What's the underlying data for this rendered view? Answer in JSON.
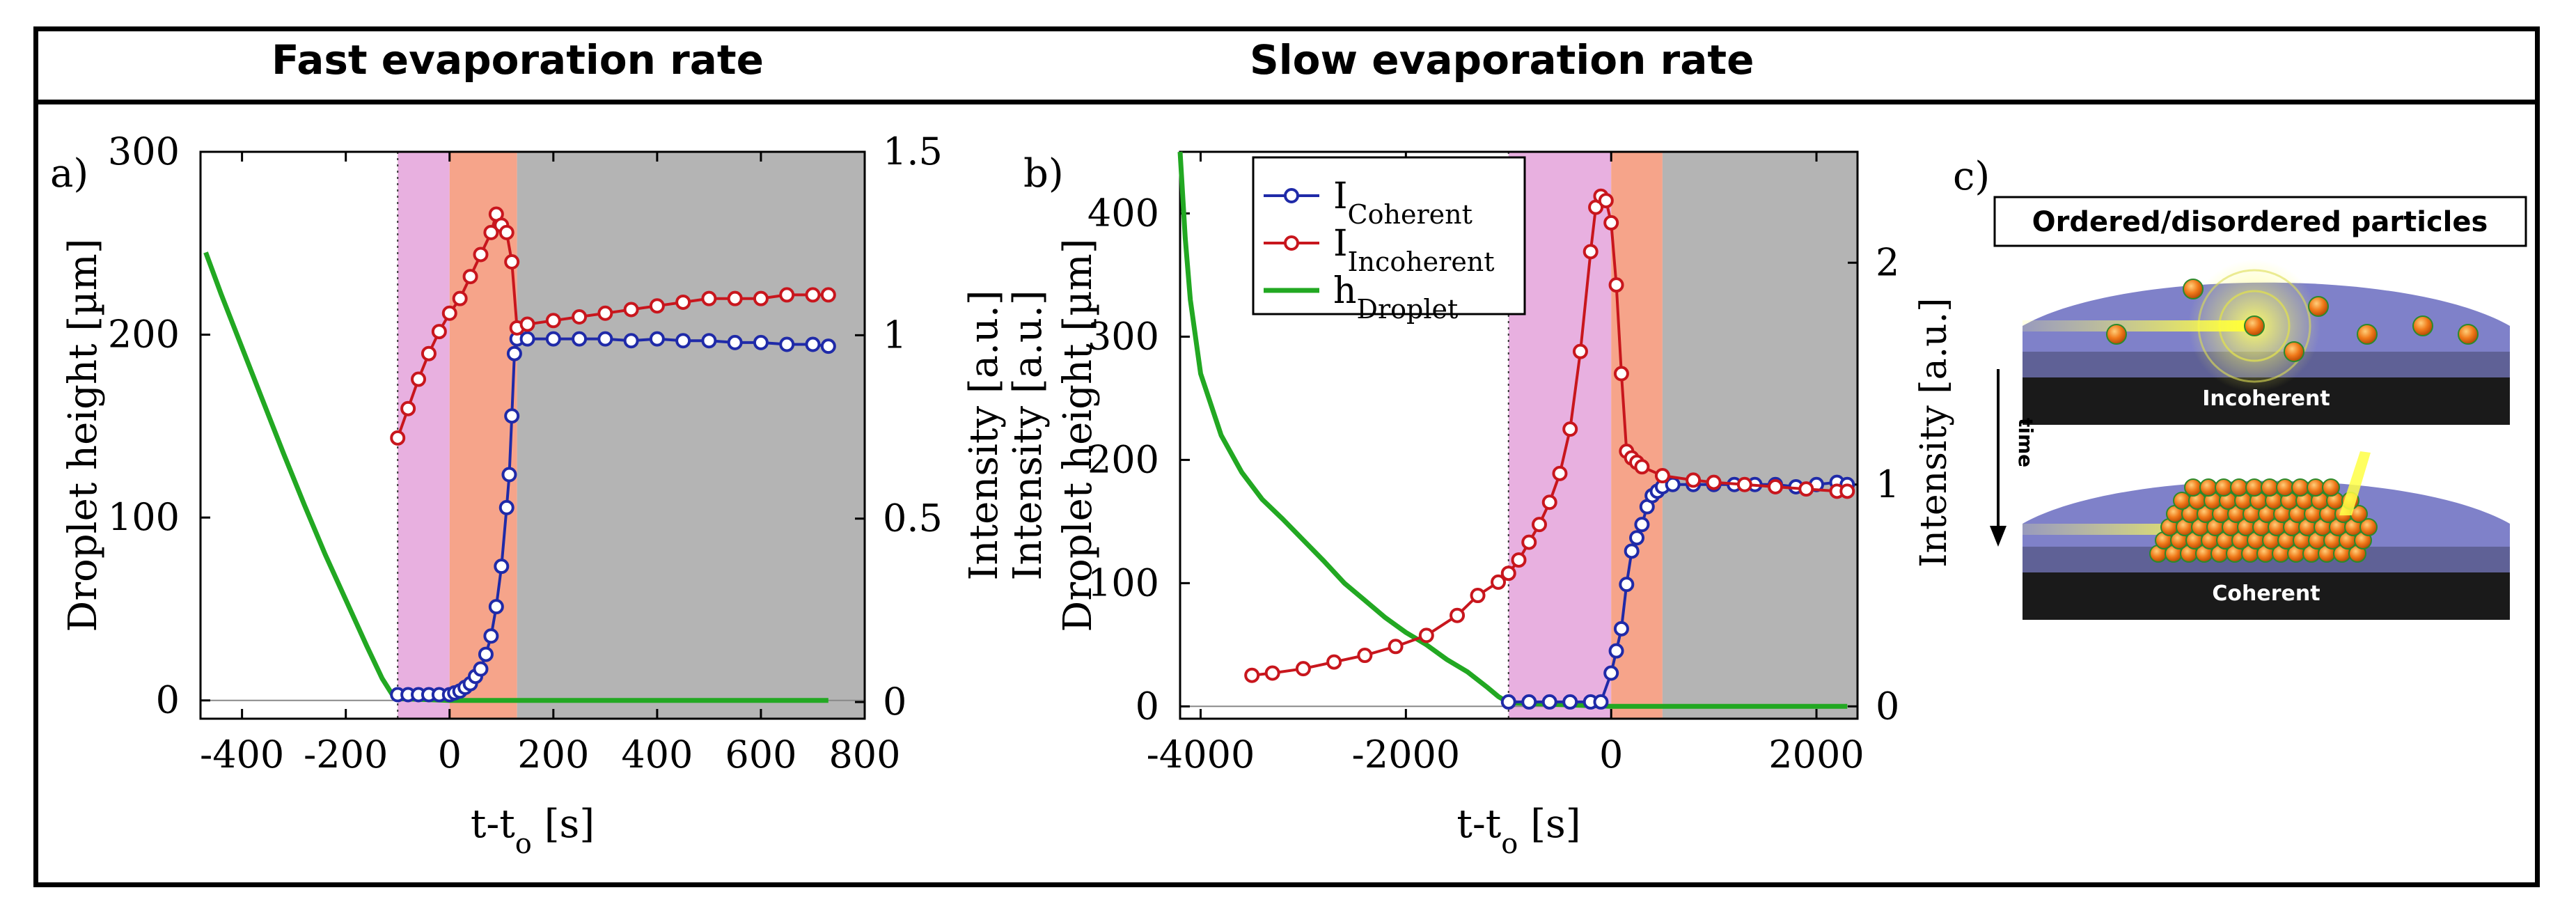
{
  "headers": {
    "left": "Fast evaporation rate",
    "right": "Slow evaporation rate"
  },
  "panel_a": {
    "label": "a)"
  },
  "panel_b": {
    "label": "b)"
  },
  "panel_c": {
    "label": "c)",
    "title": "Ordered/disordered particles",
    "top_caption": "Incoherent",
    "bottom_caption": "Coherent",
    "time_label": "time",
    "intensity_label": "Intensity [a.u.]"
  },
  "colors": {
    "coherent": "#1f2aa8",
    "incoherent": "#c8161d",
    "droplet": "#22a822",
    "phase1": "#e8b0e0",
    "phase2": "#f6a48a",
    "phase3": "#b4b4b4"
  },
  "chart_data": [
    {
      "type": "line",
      "panel": "a",
      "xlabel": "t-t0 [s]",
      "xlabel_parts": [
        "t-t",
        "o",
        " [s]"
      ],
      "ylabel": "Droplet height [µm]",
      "y2label": "Intensity [a.u.]",
      "xlim": [
        -480,
        800
      ],
      "ylim": [
        -10,
        300
      ],
      "y2lim": [
        -0.04545,
        1.5
      ],
      "xticks": [
        -400,
        -200,
        0,
        200,
        400,
        600,
        800
      ],
      "yticks": [
        0,
        100,
        200,
        300
      ],
      "y2ticks": [
        0,
        0.5,
        1,
        1.5
      ],
      "shaded_regions": [
        {
          "from": -100,
          "to": 0,
          "color": "#e8b0e0"
        },
        {
          "from": 0,
          "to": 130,
          "color": "#f6a48a"
        },
        {
          "from": 130,
          "to": 800,
          "color": "#b4b4b4"
        }
      ],
      "series": [
        {
          "name": "h_Droplet",
          "axis": "left",
          "color": "#22a822",
          "x": [
            -470,
            -440,
            -400,
            -360,
            -320,
            -280,
            -240,
            -200,
            -160,
            -130,
            -110,
            -100,
            0,
            200,
            400,
            600,
            730
          ],
          "y": [
            245,
            222,
            193,
            164,
            135,
            107,
            80,
            55,
            30,
            12,
            3,
            1,
            0,
            0,
            0,
            0,
            0
          ]
        },
        {
          "name": "I_Coherent",
          "axis": "right",
          "color": "#1f2aa8",
          "x": [
            -100,
            -80,
            -60,
            -40,
            -20,
            0,
            10,
            20,
            30,
            40,
            50,
            60,
            70,
            80,
            90,
            100,
            110,
            115,
            120,
            125,
            130,
            150,
            200,
            250,
            300,
            350,
            400,
            450,
            500,
            550,
            600,
            650,
            700,
            730
          ],
          "y": [
            0.02,
            0.02,
            0.02,
            0.02,
            0.02,
            0.02,
            0.025,
            0.03,
            0.04,
            0.05,
            0.07,
            0.09,
            0.13,
            0.18,
            0.26,
            0.37,
            0.53,
            0.62,
            0.78,
            0.95,
            0.99,
            0.99,
            0.99,
            0.99,
            0.99,
            0.985,
            0.99,
            0.985,
            0.985,
            0.98,
            0.98,
            0.975,
            0.975,
            0.97
          ]
        },
        {
          "name": "I_Incoherent",
          "axis": "right",
          "color": "#c8161d",
          "x": [
            -100,
            -80,
            -60,
            -40,
            -20,
            0,
            20,
            40,
            60,
            80,
            90,
            100,
            110,
            120,
            130,
            150,
            200,
            250,
            300,
            350,
            400,
            450,
            500,
            550,
            600,
            650,
            700,
            730
          ],
          "y": [
            0.72,
            0.8,
            0.88,
            0.95,
            1.01,
            1.06,
            1.1,
            1.16,
            1.22,
            1.28,
            1.33,
            1.3,
            1.28,
            1.2,
            1.02,
            1.03,
            1.04,
            1.05,
            1.06,
            1.07,
            1.08,
            1.09,
            1.1,
            1.1,
            1.1,
            1.11,
            1.11,
            1.11
          ]
        }
      ]
    },
    {
      "type": "line",
      "panel": "b",
      "xlabel": "t-t0 [s]",
      "xlabel_parts": [
        "t-t",
        "o",
        " [s]"
      ],
      "ylabel": "Intensity [a.u.] Droplet height [µm]",
      "ylabel_lines": [
        "Intensity [a.u.]",
        "Droplet height [µm]"
      ],
      "y2label": "",
      "xlim": [
        -4200,
        2400
      ],
      "ylim": [
        -10,
        450
      ],
      "y2lim": [
        -0.05556,
        2.5
      ],
      "xticks": [
        -4000,
        -2000,
        0,
        2000
      ],
      "yticks": [
        0,
        100,
        200,
        300,
        400
      ],
      "y2ticks": [
        0,
        1,
        2
      ],
      "shaded_regions": [
        {
          "from": -1000,
          "to": 0,
          "color": "#e8b0e0"
        },
        {
          "from": 0,
          "to": 500,
          "color": "#f6a48a"
        },
        {
          "from": 500,
          "to": 2400,
          "color": "#b4b4b4"
        }
      ],
      "legend": [
        {
          "main": "I",
          "sub": "Coherent",
          "color": "#1f2aa8",
          "marker": true
        },
        {
          "main": "I",
          "sub": "Incoherent",
          "color": "#c8161d",
          "marker": true
        },
        {
          "main": "h",
          "sub": "Droplet",
          "color": "#22a822",
          "marker": false
        }
      ],
      "series": [
        {
          "name": "h_Droplet",
          "axis": "left",
          "color": "#22a822",
          "x": [
            -4200,
            -4150,
            -4100,
            -4000,
            -3800,
            -3600,
            -3400,
            -3200,
            -3000,
            -2800,
            -2600,
            -2400,
            -2200,
            -2000,
            -1800,
            -1600,
            -1400,
            -1200,
            -1100,
            -1000,
            0,
            2300
          ],
          "y": [
            450,
            380,
            330,
            270,
            220,
            190,
            168,
            152,
            135,
            118,
            100,
            86,
            72,
            60,
            50,
            38,
            28,
            15,
            8,
            3,
            0,
            0
          ]
        },
        {
          "name": "I_Coherent",
          "axis": "right",
          "color": "#1f2aa8",
          "x": [
            -1000,
            -800,
            -600,
            -400,
            -200,
            -100,
            0,
            50,
            100,
            150,
            200,
            250,
            300,
            350,
            400,
            450,
            500,
            600,
            800,
            1000,
            1200,
            1400,
            1600,
            1800,
            2000,
            2200,
            2300
          ],
          "y": [
            0.02,
            0.02,
            0.02,
            0.02,
            0.02,
            0.02,
            0.15,
            0.25,
            0.35,
            0.55,
            0.7,
            0.76,
            0.82,
            0.9,
            0.95,
            0.97,
            0.99,
            1.0,
            1.0,
            1.0,
            1.0,
            1.0,
            1.0,
            0.99,
            1.0,
            1.01,
            1.0
          ]
        },
        {
          "name": "I_Incoherent",
          "axis": "right",
          "color": "#c8161d",
          "x": [
            -3500,
            -3300,
            -3000,
            -2700,
            -2400,
            -2100,
            -1800,
            -1500,
            -1300,
            -1100,
            -1000,
            -900,
            -800,
            -700,
            -600,
            -500,
            -400,
            -300,
            -200,
            -150,
            -100,
            -50,
            0,
            50,
            100,
            150,
            200,
            250,
            300,
            500,
            800,
            1000,
            1300,
            1600,
            1900,
            2200,
            2300
          ],
          "y": [
            0.14,
            0.15,
            0.17,
            0.2,
            0.23,
            0.27,
            0.32,
            0.41,
            0.5,
            0.56,
            0.6,
            0.66,
            0.74,
            0.82,
            0.92,
            1.05,
            1.25,
            1.6,
            2.05,
            2.25,
            2.3,
            2.28,
            2.18,
            1.9,
            1.5,
            1.15,
            1.12,
            1.1,
            1.08,
            1.04,
            1.02,
            1.01,
            1.0,
            0.99,
            0.98,
            0.97,
            0.97
          ]
        }
      ]
    }
  ]
}
